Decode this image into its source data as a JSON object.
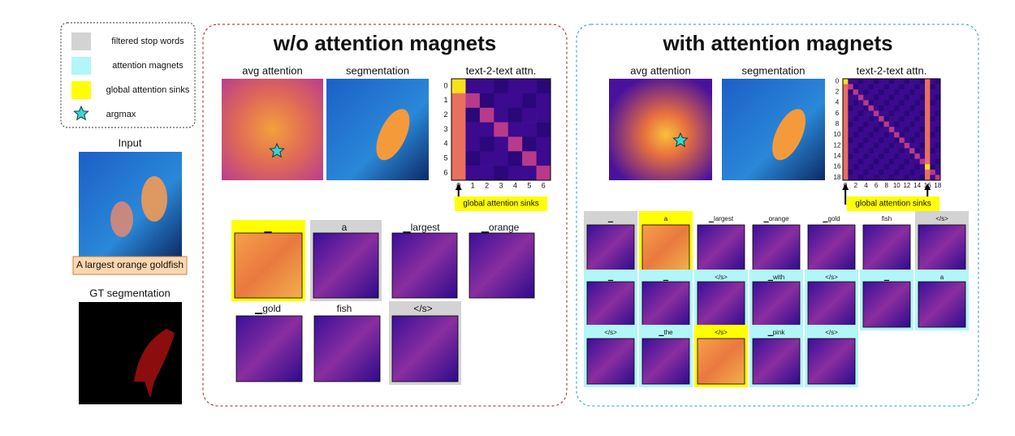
{
  "legend": {
    "items": [
      "filtered stop words",
      "attention magnets",
      "global attention sinks",
      "argmax"
    ]
  },
  "input": {
    "title": "Input",
    "caption": "A largest orange goldfish"
  },
  "gt": {
    "title": "GT segmentation"
  },
  "panels": [
    {
      "title": "w/o attention magnets",
      "avg_label": "avg attention",
      "seg_label": "segmentation",
      "matrix_label": "text-2-text attn.",
      "yticks": [
        0,
        1,
        2,
        3,
        4,
        5,
        6
      ],
      "xticks": [
        0,
        1,
        2,
        3,
        4,
        5,
        6
      ],
      "sink_label": "global attention sinks",
      "tokens": [
        "▁",
        "a",
        "▁largest",
        "▁orange",
        "▁gold",
        "fish",
        "</s>"
      ]
    },
    {
      "title": "with attention magnets",
      "avg_label": "avg attention",
      "seg_label": "segmentation",
      "matrix_label": "text-2-text attn.",
      "yticks": [
        0,
        2,
        4,
        6,
        8,
        10,
        12,
        14,
        16,
        18
      ],
      "xticks": [
        0,
        2,
        4,
        6,
        8,
        10,
        12,
        14,
        16,
        18
      ],
      "sink_label": "global attention sinks",
      "tokens": [
        "▁",
        "a",
        "▁largest",
        "▁orange",
        "▁gold",
        "fish",
        "</s>",
        "▁",
        "▁",
        "</s>",
        "▁with",
        "</s>",
        "▁",
        "a",
        "</s>",
        "▁the",
        "</s>",
        "▁pink",
        "</s>"
      ]
    }
  ]
}
